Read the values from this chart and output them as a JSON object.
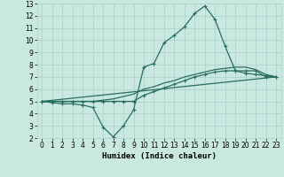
{
  "xlabel": "Humidex (Indice chaleur)",
  "xlim": [
    -0.5,
    23.5
  ],
  "ylim": [
    2,
    13
  ],
  "xticks": [
    0,
    1,
    2,
    3,
    4,
    5,
    6,
    7,
    8,
    9,
    10,
    11,
    12,
    13,
    14,
    15,
    16,
    17,
    18,
    19,
    20,
    21,
    22,
    23
  ],
  "yticks": [
    2,
    3,
    4,
    5,
    6,
    7,
    8,
    9,
    10,
    11,
    12,
    13
  ],
  "bg_color": "#c8e8e0",
  "grid_color": "#b0d4cc",
  "line_color": "#2a6e62",
  "line1_x": [
    0,
    1,
    2,
    3,
    4,
    5,
    6,
    7,
    8,
    9,
    10,
    11,
    12,
    13,
    14,
    15,
    16,
    17,
    18,
    19,
    20,
    21,
    22,
    23
  ],
  "line1_y": [
    5.0,
    4.9,
    4.8,
    4.8,
    4.7,
    4.5,
    2.9,
    2.1,
    3.0,
    4.3,
    7.8,
    8.1,
    9.8,
    10.4,
    11.1,
    12.2,
    12.8,
    11.7,
    9.5,
    7.5,
    7.3,
    7.2,
    7.1,
    7.0
  ],
  "line2_x": [
    0,
    1,
    2,
    3,
    4,
    5,
    6,
    7,
    8,
    9,
    10,
    11,
    12,
    13,
    14,
    15,
    16,
    17,
    18,
    19,
    20,
    21,
    22,
    23
  ],
  "line2_y": [
    5.0,
    5.0,
    5.0,
    5.0,
    5.0,
    5.0,
    5.0,
    5.0,
    5.0,
    5.0,
    5.5,
    5.8,
    6.1,
    6.4,
    6.7,
    7.0,
    7.2,
    7.4,
    7.5,
    7.5,
    7.5,
    7.5,
    7.0,
    7.0
  ],
  "line3_x": [
    0,
    1,
    2,
    3,
    4,
    5,
    6,
    7,
    8,
    9,
    10,
    11,
    12,
    13,
    14,
    15,
    16,
    17,
    18,
    19,
    20,
    21,
    22,
    23
  ],
  "line3_y": [
    5.0,
    5.0,
    5.0,
    5.0,
    5.0,
    5.0,
    5.1,
    5.2,
    5.4,
    5.6,
    6.0,
    6.2,
    6.5,
    6.7,
    7.0,
    7.2,
    7.4,
    7.6,
    7.7,
    7.8,
    7.8,
    7.6,
    7.2,
    7.0
  ],
  "line4_x": [
    0,
    23
  ],
  "line4_y": [
    5.0,
    7.0
  ]
}
